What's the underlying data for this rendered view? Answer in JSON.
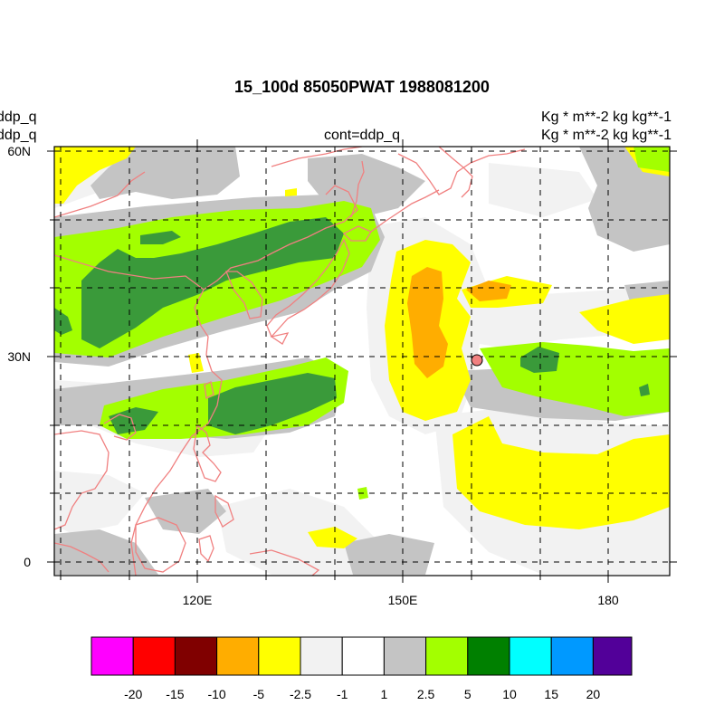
{
  "header": {
    "title": "15_100d 85050PWAT  1988081200",
    "left_line1": "ddp_q",
    "left_line2": "ddp_q",
    "center": "cont=ddp_q",
    "right_line1": "Kg  * m**-2 kg kg**-1",
    "right_line2": "Kg  * m**-2 kg kg**-1"
  },
  "axes": {
    "lat_labels": [
      "60N",
      "30N",
      "0"
    ],
    "lon_labels": [
      "120E",
      "150E",
      "180"
    ]
  },
  "colorbar": {
    "colors": [
      "#ff00ff",
      "#ff0000",
      "#800000",
      "#ffad00",
      "#ffff00",
      "#f2f2f2",
      "#ffffff",
      "#c4c4c4",
      "#a3ff00",
      "#008000",
      "#00ffff",
      "#0099ff",
      "#520099"
    ],
    "labels": [
      "-20",
      "-15",
      "-10",
      "-5",
      "-2.5",
      "-1",
      "1",
      "2.5",
      "5",
      "10",
      "15",
      "20"
    ]
  },
  "chart_data": {
    "type": "heatmap",
    "title": "15_100d 85050PWAT  1988081200",
    "xlabel": "",
    "ylabel": "",
    "xlim": [
      100,
      189
    ],
    "ylim": [
      -2,
      60
    ],
    "x_ticks": [
      "120E",
      "150E",
      "180"
    ],
    "y_ticks": [
      "60N",
      "30N",
      "0"
    ],
    "grid": true,
    "levels": [
      -20,
      -15,
      -10,
      -5,
      -2.5,
      -1,
      1,
      2.5,
      5,
      10,
      15,
      20
    ],
    "marker": {
      "lon": 161,
      "lat": 29.7,
      "color": "#f08080"
    }
  }
}
